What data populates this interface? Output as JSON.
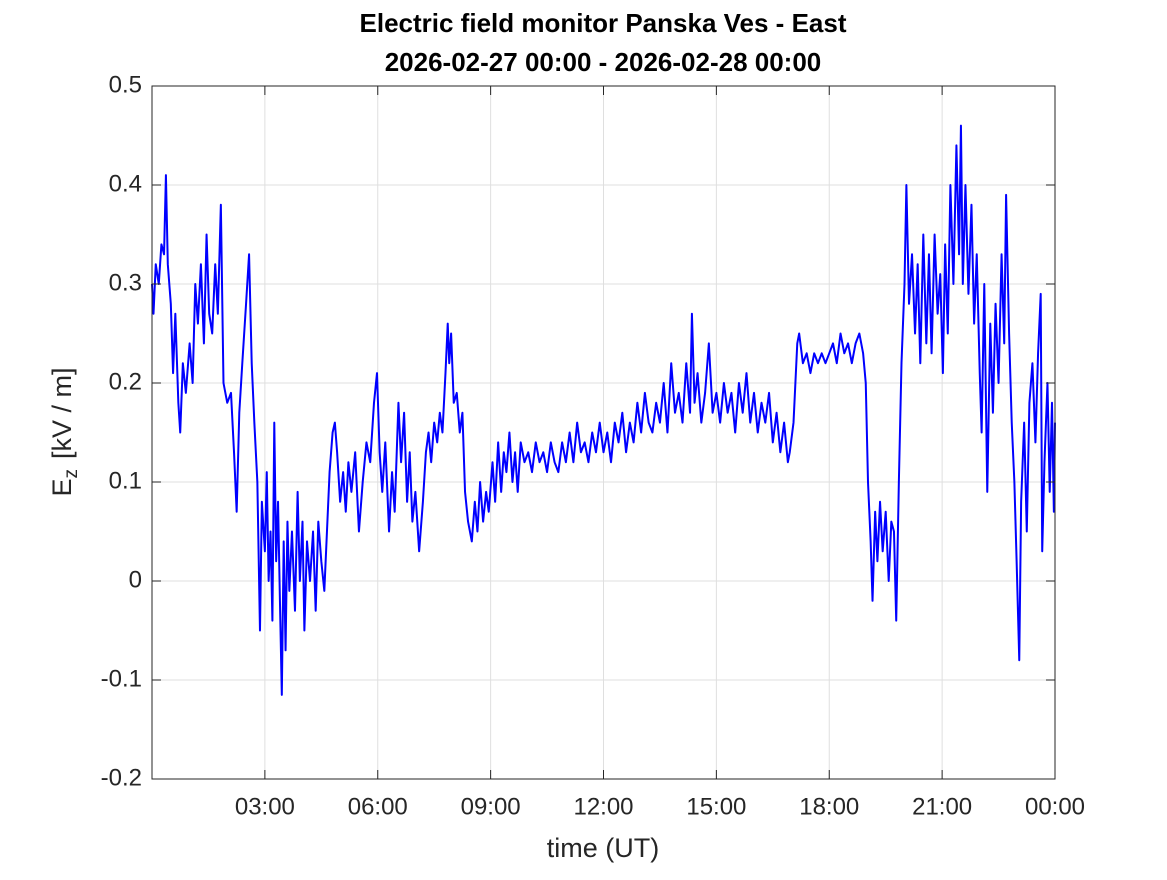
{
  "chart_data": {
    "type": "line",
    "title": "Electric field monitor Panska Ves - East",
    "subtitle": "2026-02-27 00:00 - 2026-02-28 00:00",
    "xlabel": "time (UT)",
    "ylabel_base": "E",
    "ylabel_sub": "z",
    "ylabel_rest": "[kV / m]",
    "xlim": [
      0,
      24
    ],
    "ylim": [
      -0.2,
      0.5
    ],
    "xticks": [
      {
        "value": 3,
        "label": "03:00"
      },
      {
        "value": 6,
        "label": "06:00"
      },
      {
        "value": 9,
        "label": "09:00"
      },
      {
        "value": 12,
        "label": "12:00"
      },
      {
        "value": 15,
        "label": "15:00"
      },
      {
        "value": 18,
        "label": "18:00"
      },
      {
        "value": 21,
        "label": "21:00"
      },
      {
        "value": 24,
        "label": "00:00"
      }
    ],
    "yticks": [
      -0.2,
      -0.1,
      0,
      0.1,
      0.2,
      0.3,
      0.4,
      0.5
    ],
    "grid": true,
    "x": [
      0,
      0.04,
      0.1,
      0.18,
      0.25,
      0.32,
      0.37,
      0.42,
      0.5,
      0.56,
      0.62,
      0.7,
      0.75,
      0.82,
      0.9,
      1.0,
      1.08,
      1.15,
      1.22,
      1.3,
      1.38,
      1.45,
      1.52,
      1.6,
      1.68,
      1.75,
      1.83,
      1.9,
      2.0,
      2.1,
      2.18,
      2.25,
      2.32,
      2.4,
      2.5,
      2.58,
      2.65,
      2.72,
      2.8,
      2.87,
      2.92,
      3.0,
      3.05,
      3.1,
      3.15,
      3.2,
      3.25,
      3.3,
      3.35,
      3.4,
      3.45,
      3.5,
      3.55,
      3.6,
      3.65,
      3.72,
      3.8,
      3.87,
      3.93,
      4.0,
      4.05,
      4.12,
      4.2,
      4.28,
      4.35,
      4.42,
      4.5,
      4.58,
      4.65,
      4.72,
      4.8,
      4.86,
      4.92,
      5.0,
      5.08,
      5.15,
      5.22,
      5.3,
      5.4,
      5.5,
      5.6,
      5.7,
      5.8,
      5.9,
      5.98,
      6.05,
      6.12,
      6.2,
      6.3,
      6.38,
      6.45,
      6.55,
      6.62,
      6.7,
      6.78,
      6.85,
      6.92,
      7.0,
      7.1,
      7.2,
      7.28,
      7.35,
      7.42,
      7.5,
      7.58,
      7.65,
      7.72,
      7.8,
      7.86,
      7.9,
      7.95,
      8.02,
      8.1,
      8.18,
      8.25,
      8.32,
      8.4,
      8.5,
      8.58,
      8.65,
      8.72,
      8.8,
      8.88,
      8.95,
      9.05,
      9.12,
      9.2,
      9.28,
      9.35,
      9.42,
      9.5,
      9.58,
      9.65,
      9.72,
      9.8,
      9.9,
      10.0,
      10.1,
      10.2,
      10.3,
      10.4,
      10.5,
      10.6,
      10.7,
      10.8,
      10.9,
      11.0,
      11.1,
      11.2,
      11.3,
      11.4,
      11.5,
      11.6,
      11.7,
      11.8,
      11.9,
      12.0,
      12.1,
      12.2,
      12.3,
      12.4,
      12.5,
      12.6,
      12.7,
      12.8,
      12.9,
      13.0,
      13.1,
      13.2,
      13.3,
      13.4,
      13.5,
      13.6,
      13.7,
      13.8,
      13.9,
      14.0,
      14.1,
      14.2,
      14.3,
      14.35,
      14.42,
      14.5,
      14.6,
      14.7,
      14.8,
      14.9,
      15.0,
      15.1,
      15.2,
      15.3,
      15.4,
      15.5,
      15.6,
      15.7,
      15.8,
      15.9,
      16.0,
      16.1,
      16.2,
      16.3,
      16.4,
      16.5,
      16.6,
      16.7,
      16.8,
      16.9,
      16.95,
      17.05,
      17.15,
      17.2,
      17.3,
      17.4,
      17.5,
      17.6,
      17.7,
      17.8,
      17.9,
      18.0,
      18.1,
      18.2,
      18.3,
      18.4,
      18.5,
      18.6,
      18.7,
      18.8,
      18.9,
      18.97,
      19.03,
      19.1,
      19.15,
      19.22,
      19.28,
      19.35,
      19.42,
      19.5,
      19.58,
      19.65,
      19.72,
      19.78,
      19.85,
      19.92,
      20.0,
      20.05,
      20.12,
      20.2,
      20.28,
      20.35,
      20.42,
      20.5,
      20.58,
      20.65,
      20.72,
      20.8,
      20.88,
      20.95,
      21.02,
      21.08,
      21.15,
      21.22,
      21.3,
      21.38,
      21.45,
      21.5,
      21.55,
      21.62,
      21.7,
      21.78,
      21.85,
      21.92,
      22.0,
      22.05,
      22.12,
      22.2,
      22.28,
      22.35,
      22.42,
      22.5,
      22.58,
      22.65,
      22.7,
      22.78,
      22.85,
      22.92,
      22.98,
      23.05,
      23.1,
      23.18,
      23.25,
      23.32,
      23.4,
      23.48,
      23.55,
      23.62,
      23.66,
      23.72,
      23.8,
      23.86,
      23.92,
      23.97,
      24.0
    ],
    "series": [
      {
        "color": "#0000ff",
        "values": [
          0.3,
          0.27,
          0.32,
          0.3,
          0.34,
          0.33,
          0.41,
          0.32,
          0.28,
          0.21,
          0.27,
          0.18,
          0.15,
          0.22,
          0.19,
          0.24,
          0.2,
          0.3,
          0.26,
          0.32,
          0.24,
          0.35,
          0.27,
          0.25,
          0.32,
          0.27,
          0.38,
          0.2,
          0.18,
          0.19,
          0.13,
          0.07,
          0.17,
          0.22,
          0.28,
          0.33,
          0.22,
          0.16,
          0.1,
          -0.05,
          0.08,
          0.03,
          0.11,
          0.0,
          0.05,
          -0.04,
          0.16,
          0.02,
          0.08,
          -0.02,
          -0.115,
          0.04,
          -0.07,
          0.06,
          -0.01,
          0.05,
          -0.03,
          0.09,
          0.0,
          0.06,
          -0.05,
          0.04,
          0.0,
          0.05,
          -0.03,
          0.06,
          0.02,
          -0.01,
          0.05,
          0.11,
          0.15,
          0.16,
          0.13,
          0.08,
          0.11,
          0.07,
          0.12,
          0.09,
          0.13,
          0.05,
          0.1,
          0.14,
          0.12,
          0.18,
          0.21,
          0.13,
          0.09,
          0.14,
          0.05,
          0.11,
          0.07,
          0.18,
          0.12,
          0.17,
          0.08,
          0.13,
          0.06,
          0.09,
          0.03,
          0.08,
          0.13,
          0.15,
          0.12,
          0.16,
          0.14,
          0.17,
          0.15,
          0.21,
          0.26,
          0.22,
          0.25,
          0.18,
          0.19,
          0.15,
          0.17,
          0.09,
          0.06,
          0.04,
          0.08,
          0.05,
          0.1,
          0.06,
          0.09,
          0.07,
          0.12,
          0.08,
          0.14,
          0.09,
          0.13,
          0.11,
          0.15,
          0.1,
          0.13,
          0.09,
          0.14,
          0.12,
          0.13,
          0.11,
          0.14,
          0.12,
          0.13,
          0.11,
          0.14,
          0.12,
          0.11,
          0.14,
          0.12,
          0.15,
          0.12,
          0.16,
          0.13,
          0.14,
          0.12,
          0.15,
          0.13,
          0.16,
          0.13,
          0.15,
          0.12,
          0.16,
          0.14,
          0.17,
          0.13,
          0.16,
          0.14,
          0.18,
          0.15,
          0.19,
          0.16,
          0.15,
          0.18,
          0.16,
          0.2,
          0.15,
          0.22,
          0.17,
          0.19,
          0.16,
          0.22,
          0.17,
          0.27,
          0.18,
          0.21,
          0.16,
          0.19,
          0.24,
          0.17,
          0.19,
          0.16,
          0.2,
          0.17,
          0.19,
          0.15,
          0.2,
          0.17,
          0.21,
          0.16,
          0.19,
          0.15,
          0.18,
          0.16,
          0.19,
          0.14,
          0.17,
          0.13,
          0.16,
          0.12,
          0.13,
          0.16,
          0.24,
          0.25,
          0.22,
          0.23,
          0.21,
          0.23,
          0.22,
          0.23,
          0.22,
          0.23,
          0.24,
          0.22,
          0.25,
          0.23,
          0.24,
          0.22,
          0.24,
          0.25,
          0.23,
          0.2,
          0.1,
          0.04,
          -0.02,
          0.07,
          0.02,
          0.08,
          0.03,
          0.07,
          0.0,
          0.06,
          0.05,
          -0.04,
          0.1,
          0.22,
          0.3,
          0.4,
          0.28,
          0.33,
          0.25,
          0.32,
          0.22,
          0.35,
          0.24,
          0.33,
          0.23,
          0.35,
          0.27,
          0.31,
          0.21,
          0.34,
          0.25,
          0.4,
          0.3,
          0.44,
          0.33,
          0.46,
          0.3,
          0.4,
          0.29,
          0.38,
          0.26,
          0.33,
          0.21,
          0.15,
          0.3,
          0.09,
          0.26,
          0.17,
          0.28,
          0.2,
          0.33,
          0.24,
          0.39,
          0.25,
          0.16,
          0.1,
          0.02,
          -0.08,
          0.08,
          0.16,
          0.05,
          0.18,
          0.22,
          0.14,
          0.23,
          0.29,
          0.03,
          0.12,
          0.2,
          0.09,
          0.18,
          0.07,
          0.16
        ]
      }
    ]
  }
}
